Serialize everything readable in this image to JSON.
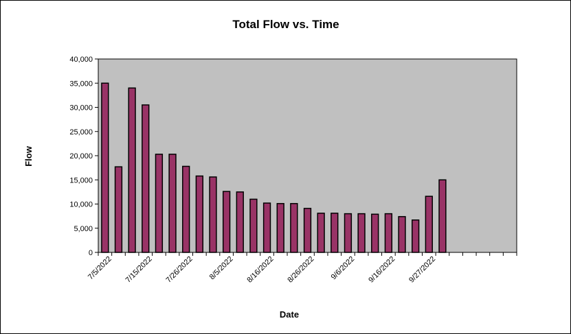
{
  "chart_data": {
    "type": "bar",
    "title": "Total Flow vs. Time",
    "xlabel": "Date",
    "ylabel": "Flow",
    "ylim": [
      0,
      40000
    ],
    "y_ticks": [
      "0",
      "5,000",
      "10,000",
      "15,000",
      "20,000",
      "25,000",
      "30,000",
      "35,000",
      "40,000"
    ],
    "x_tick_labels": [
      "7/5/2022",
      "7/15/2022",
      "7/26/2022",
      "8/5/2022",
      "8/16/2022",
      "8/26/2022",
      "9/6/2022",
      "9/16/2022",
      "9/27/2022"
    ],
    "values": [
      35000,
      17700,
      34000,
      30500,
      20300,
      20300,
      17800,
      15800,
      15600,
      12600,
      12500,
      11000,
      10200,
      10100,
      10100,
      9100,
      8100,
      8100,
      8000,
      8000,
      7900,
      8000,
      7400,
      6700,
      11600,
      15000
    ],
    "empty_slots": 5,
    "grid": false,
    "legend": "none",
    "colors": {
      "plot_bg": "#c0c0c0",
      "bar_fill": "#993366",
      "bar_stroke": "#000000",
      "axis": "#000000"
    }
  }
}
